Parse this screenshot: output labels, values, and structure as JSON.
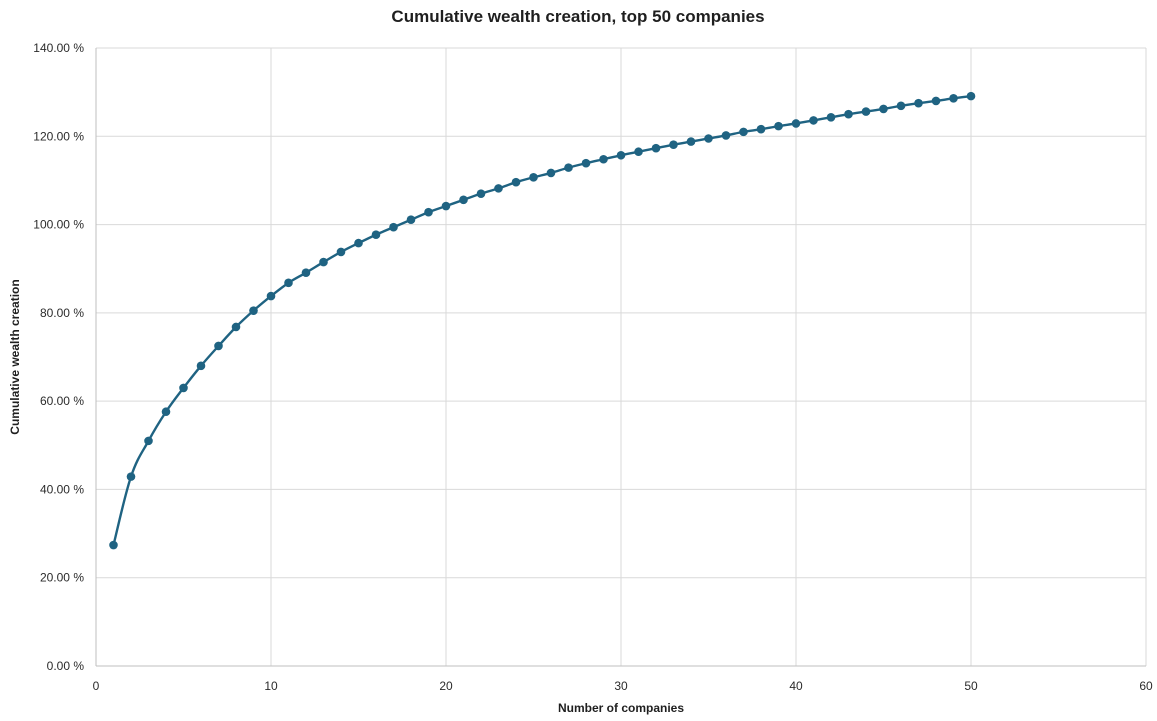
{
  "chart_data": {
    "type": "line",
    "title": "Cumulative wealth creation, top 50 companies",
    "xlabel": "Number of companies",
    "ylabel": "Cumulative wealth creation",
    "xlim": [
      0,
      60
    ],
    "ylim": [
      0,
      140
    ],
    "x_ticks": [
      0,
      10,
      20,
      30,
      40,
      50,
      60
    ],
    "y_ticks": [
      0,
      20,
      40,
      60,
      80,
      100,
      120,
      140
    ],
    "y_tick_format": "percent_2dp",
    "grid": true,
    "legend": "none",
    "series": [
      {
        "x": [
          1,
          2,
          3,
          4,
          5,
          6,
          7,
          8,
          9,
          10,
          11,
          12,
          13,
          14,
          15,
          16,
          17,
          18,
          19,
          20,
          21,
          22,
          23,
          24,
          25,
          26,
          27,
          28,
          29,
          30,
          31,
          32,
          33,
          34,
          35,
          36,
          37,
          38,
          39,
          40,
          41,
          42,
          43,
          44,
          45,
          46,
          47,
          48,
          49,
          50
        ],
        "y": [
          27.4,
          42.9,
          51.0,
          57.6,
          63.0,
          68.0,
          72.5,
          76.8,
          80.5,
          83.8,
          86.8,
          89.1,
          91.5,
          93.8,
          95.8,
          97.7,
          99.4,
          101.1,
          102.8,
          104.2,
          105.6,
          107.0,
          108.2,
          109.6,
          110.7,
          111.7,
          112.9,
          113.9,
          114.8,
          115.7,
          116.5,
          117.3,
          118.1,
          118.8,
          119.5,
          120.2,
          121.0,
          121.6,
          122.3,
          122.9,
          123.6,
          124.3,
          125.0,
          125.6,
          126.2,
          126.9,
          127.5,
          128.0,
          128.6,
          129.1
        ],
        "color": "#1f6382"
      }
    ]
  }
}
